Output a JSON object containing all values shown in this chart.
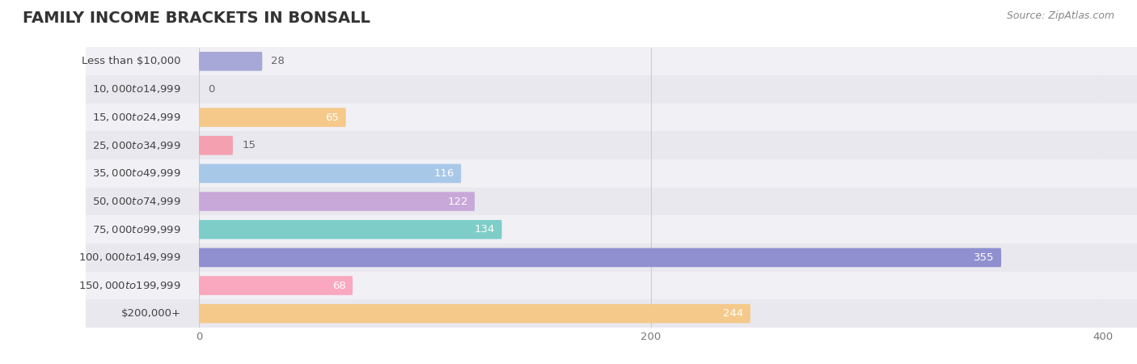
{
  "title": "FAMILY INCOME BRACKETS IN BONSALL",
  "source": "Source: ZipAtlas.com",
  "categories": [
    "Less than $10,000",
    "$10,000 to $14,999",
    "$15,000 to $24,999",
    "$25,000 to $34,999",
    "$35,000 to $49,999",
    "$50,000 to $74,999",
    "$75,000 to $99,999",
    "$100,000 to $149,999",
    "$150,000 to $199,999",
    "$200,000+"
  ],
  "values": [
    28,
    0,
    65,
    15,
    116,
    122,
    134,
    355,
    68,
    244
  ],
  "bar_colors": [
    "#a8a8d8",
    "#f4a0b0",
    "#f5c98a",
    "#f4a0b0",
    "#a8c8e8",
    "#c8a8d8",
    "#7ecdc8",
    "#9090d0",
    "#f9a8c0",
    "#f5c98a"
  ],
  "row_colors": [
    "#f0f0f5",
    "#e8e8ee"
  ],
  "xlim": [
    0,
    400
  ],
  "xticks": [
    0,
    200,
    400
  ],
  "title_fontsize": 14,
  "label_fontsize": 9.5,
  "value_fontsize": 9.5,
  "bar_height": 0.68,
  "background_color": "#ffffff"
}
